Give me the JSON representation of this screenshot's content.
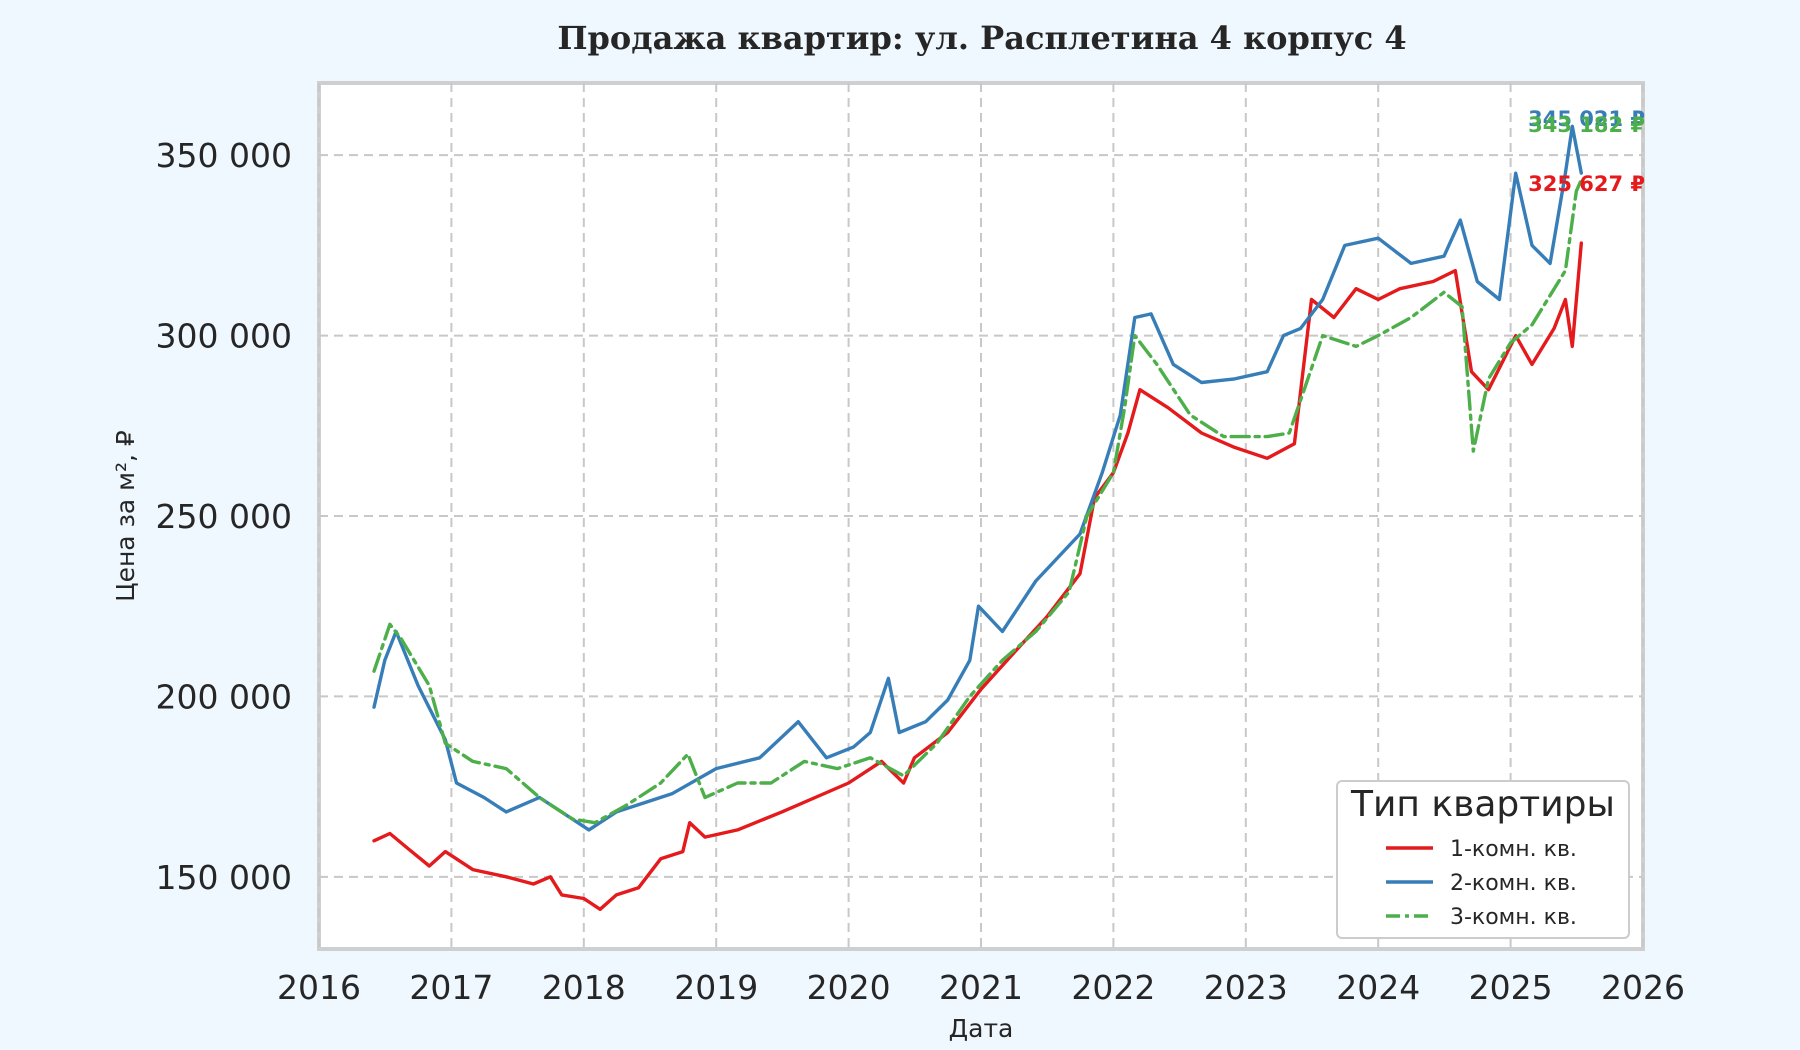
{
  "chart_data": {
    "type": "line",
    "title": "Продажа квартир: ул. Расплетина 4 корпус 4",
    "xlabel": "Дата",
    "ylabel": "Цена за м², ₽",
    "xlim": [
      "2016-01-01",
      "2026-01-01"
    ],
    "ylim": [
      130000,
      370000
    ],
    "x_ticks": [
      "2016",
      "2017",
      "2018",
      "2019",
      "2020",
      "2021",
      "2022",
      "2023",
      "2024",
      "2025",
      "2026"
    ],
    "y_ticks": [
      {
        "value": 150000,
        "label": "150 000"
      },
      {
        "value": 200000,
        "label": "200 000"
      },
      {
        "value": 250000,
        "label": "250 000"
      },
      {
        "value": 300000,
        "label": "300 000"
      },
      {
        "value": 350000,
        "label": "350 000"
      }
    ],
    "grid": true,
    "legend": {
      "title": "Тип квартиры",
      "position": "lower-right"
    },
    "series": [
      {
        "name": "1-комн. кв.",
        "color": "#e41a1c",
        "style": "solid",
        "end_label": "325 627 ₽",
        "points": [
          [
            "2016-06-01",
            160000
          ],
          [
            "2016-07-15",
            162000
          ],
          [
            "2016-09-01",
            158000
          ],
          [
            "2016-11-01",
            153000
          ],
          [
            "2016-12-15",
            157000
          ],
          [
            "2017-03-01",
            152000
          ],
          [
            "2017-06-01",
            150000
          ],
          [
            "2017-08-15",
            148000
          ],
          [
            "2017-10-01",
            150000
          ],
          [
            "2017-11-01",
            145000
          ],
          [
            "2018-01-01",
            144000
          ],
          [
            "2018-02-15",
            141000
          ],
          [
            "2018-04-01",
            145000
          ],
          [
            "2018-06-01",
            147000
          ],
          [
            "2018-08-01",
            155000
          ],
          [
            "2018-10-01",
            157000
          ],
          [
            "2018-10-20",
            165000
          ],
          [
            "2018-12-01",
            161000
          ],
          [
            "2019-03-01",
            163000
          ],
          [
            "2019-07-01",
            168000
          ],
          [
            "2019-10-01",
            172000
          ],
          [
            "2020-01-01",
            176000
          ],
          [
            "2020-04-01",
            182000
          ],
          [
            "2020-06-01",
            176000
          ],
          [
            "2020-07-01",
            183000
          ],
          [
            "2020-10-01",
            190000
          ],
          [
            "2021-01-01",
            202000
          ],
          [
            "2021-04-01",
            212000
          ],
          [
            "2021-07-01",
            222000
          ],
          [
            "2021-10-01",
            234000
          ],
          [
            "2021-11-10",
            255000
          ],
          [
            "2022-01-01",
            262000
          ],
          [
            "2022-02-10",
            273000
          ],
          [
            "2022-03-15",
            285000
          ],
          [
            "2022-06-01",
            280000
          ],
          [
            "2022-09-01",
            273000
          ],
          [
            "2022-12-01",
            269000
          ],
          [
            "2023-03-01",
            266000
          ],
          [
            "2023-05-15",
            270000
          ],
          [
            "2023-07-01",
            310000
          ],
          [
            "2023-09-01",
            305000
          ],
          [
            "2023-11-01",
            313000
          ],
          [
            "2024-01-01",
            310000
          ],
          [
            "2024-03-01",
            313000
          ],
          [
            "2024-06-01",
            315000
          ],
          [
            "2024-08-01",
            318000
          ],
          [
            "2024-09-15",
            290000
          ],
          [
            "2024-11-01",
            285000
          ],
          [
            "2025-01-15",
            300000
          ],
          [
            "2025-03-01",
            292000
          ],
          [
            "2025-05-01",
            302000
          ],
          [
            "2025-06-01",
            310000
          ],
          [
            "2025-06-20",
            297000
          ],
          [
            "2025-07-15",
            325627
          ]
        ]
      },
      {
        "name": "2-комн. кв.",
        "color": "#377eb8",
        "style": "solid",
        "end_label": "345 021 ₽",
        "points": [
          [
            "2016-06-01",
            197000
          ],
          [
            "2016-07-01",
            210000
          ],
          [
            "2016-08-01",
            218000
          ],
          [
            "2016-10-01",
            203000
          ],
          [
            "2016-12-15",
            188000
          ],
          [
            "2017-01-15",
            176000
          ],
          [
            "2017-04-01",
            172000
          ],
          [
            "2017-06-01",
            168000
          ],
          [
            "2017-09-01",
            172000
          ],
          [
            "2018-01-15",
            163000
          ],
          [
            "2018-04-01",
            168000
          ],
          [
            "2018-09-01",
            173000
          ],
          [
            "2019-01-01",
            180000
          ],
          [
            "2019-05-01",
            183000
          ],
          [
            "2019-08-15",
            193000
          ],
          [
            "2019-11-01",
            183000
          ],
          [
            "2020-01-15",
            186000
          ],
          [
            "2020-03-01",
            190000
          ],
          [
            "2020-04-20",
            205000
          ],
          [
            "2020-05-20",
            190000
          ],
          [
            "2020-08-01",
            193000
          ],
          [
            "2020-10-01",
            199000
          ],
          [
            "2020-12-01",
            210000
          ],
          [
            "2020-12-25",
            225000
          ],
          [
            "2021-03-01",
            218000
          ],
          [
            "2021-06-01",
            232000
          ],
          [
            "2021-10-01",
            245000
          ],
          [
            "2021-12-01",
            262000
          ],
          [
            "2022-01-20",
            278000
          ],
          [
            "2022-03-01",
            305000
          ],
          [
            "2022-04-15",
            306000
          ],
          [
            "2022-06-15",
            292000
          ],
          [
            "2022-09-01",
            287000
          ],
          [
            "2022-12-01",
            288000
          ],
          [
            "2023-03-01",
            290000
          ],
          [
            "2023-04-15",
            300000
          ],
          [
            "2023-06-01",
            302000
          ],
          [
            "2023-08-01",
            310000
          ],
          [
            "2023-10-01",
            325000
          ],
          [
            "2024-01-01",
            327000
          ],
          [
            "2024-04-01",
            320000
          ],
          [
            "2024-07-01",
            322000
          ],
          [
            "2024-08-15",
            332000
          ],
          [
            "2024-10-01",
            315000
          ],
          [
            "2024-12-01",
            310000
          ],
          [
            "2025-01-15",
            345000
          ],
          [
            "2025-03-01",
            325000
          ],
          [
            "2025-04-20",
            320000
          ],
          [
            "2025-06-01",
            345000
          ],
          [
            "2025-06-20",
            358000
          ],
          [
            "2025-07-15",
            345021
          ]
        ]
      },
      {
        "name": "3-комн. кв.",
        "color": "#4daf4a",
        "style": "dashdot",
        "end_label": "343 182 ₽",
        "points": [
          [
            "2016-06-01",
            207000
          ],
          [
            "2016-07-15",
            220000
          ],
          [
            "2016-08-15",
            216000
          ],
          [
            "2016-11-01",
            203000
          ],
          [
            "2016-12-15",
            187000
          ],
          [
            "2017-03-01",
            182000
          ],
          [
            "2017-06-01",
            180000
          ],
          [
            "2017-09-01",
            172000
          ],
          [
            "2017-12-01",
            166000
          ],
          [
            "2018-02-01",
            165000
          ],
          [
            "2018-05-01",
            170000
          ],
          [
            "2018-08-01",
            176000
          ],
          [
            "2018-10-15",
            184000
          ],
          [
            "2018-12-01",
            172000
          ],
          [
            "2019-03-01",
            176000
          ],
          [
            "2019-06-01",
            176000
          ],
          [
            "2019-09-01",
            182000
          ],
          [
            "2019-12-01",
            180000
          ],
          [
            "2020-03-01",
            183000
          ],
          [
            "2020-06-01",
            178000
          ],
          [
            "2020-09-01",
            187000
          ],
          [
            "2020-12-01",
            200000
          ],
          [
            "2021-03-01",
            210000
          ],
          [
            "2021-06-01",
            218000
          ],
          [
            "2021-09-01",
            229000
          ],
          [
            "2021-10-20",
            250000
          ],
          [
            "2022-01-01",
            262000
          ],
          [
            "2022-02-01",
            280000
          ],
          [
            "2022-03-01",
            300000
          ],
          [
            "2022-05-01",
            292000
          ],
          [
            "2022-08-01",
            278000
          ],
          [
            "2022-11-01",
            272000
          ],
          [
            "2023-03-01",
            272000
          ],
          [
            "2023-05-01",
            273000
          ],
          [
            "2023-08-01",
            300000
          ],
          [
            "2023-11-01",
            297000
          ],
          [
            "2024-01-01",
            300000
          ],
          [
            "2024-04-01",
            305000
          ],
          [
            "2024-07-01",
            312000
          ],
          [
            "2024-08-20",
            308000
          ],
          [
            "2024-09-20",
            268000
          ],
          [
            "2024-11-01",
            288000
          ],
          [
            "2025-01-01",
            298000
          ],
          [
            "2025-03-01",
            303000
          ],
          [
            "2025-06-01",
            318000
          ],
          [
            "2025-07-01",
            340000
          ],
          [
            "2025-07-15",
            343182
          ]
        ]
      }
    ]
  }
}
